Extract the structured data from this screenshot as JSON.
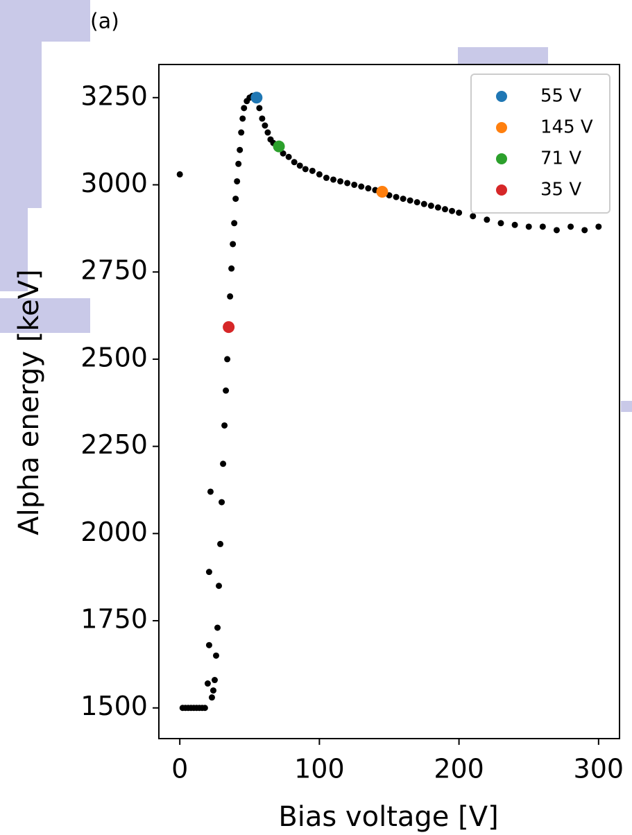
{
  "chart_data": {
    "type": "scatter",
    "panel_label": "(a)",
    "x_label": "Bias voltage [V]",
    "y_label": "Alpha energy [keV]",
    "xlim": [
      -15,
      315
    ],
    "ylim": [
      1412,
      3345
    ],
    "xticks": [
      0,
      100,
      200,
      300
    ],
    "yticks": [
      1500,
      1750,
      2000,
      2250,
      2500,
      2750,
      3000,
      3250
    ],
    "legend": "upper right",
    "points": {
      "color": "#000000",
      "x": [
        0,
        2,
        4,
        6,
        8,
        10,
        12,
        14,
        16,
        18,
        20,
        21,
        21,
        22,
        23,
        24,
        25,
        26,
        27,
        28,
        29,
        30,
        31,
        32,
        33,
        34,
        36,
        37,
        38,
        39,
        40,
        41,
        42,
        43,
        44,
        45,
        46,
        48,
        50,
        52,
        57,
        59,
        61,
        63,
        65,
        67,
        74,
        78,
        82,
        86,
        90,
        95,
        100,
        105,
        110,
        115,
        120,
        125,
        130,
        135,
        140,
        150,
        155,
        160,
        165,
        170,
        175,
        180,
        185,
        190,
        195,
        200,
        210,
        220,
        230,
        240,
        250,
        260,
        270,
        280,
        290,
        300
      ],
      "y": [
        3030,
        1500,
        1500,
        1500,
        1500,
        1500,
        1500,
        1500,
        1500,
        1500,
        1570,
        1680,
        1890,
        2120,
        1530,
        1550,
        1580,
        1650,
        1730,
        1850,
        1970,
        2090,
        2200,
        2310,
        2410,
        2500,
        2680,
        2760,
        2830,
        2890,
        2960,
        3010,
        3060,
        3100,
        3150,
        3190,
        3220,
        3240,
        3250,
        3255,
        3220,
        3190,
        3170,
        3150,
        3130,
        3120,
        3090,
        3080,
        3065,
        3055,
        3045,
        3040,
        3030,
        3020,
        3015,
        3010,
        3005,
        3000,
        2995,
        2990,
        2985,
        2970,
        2965,
        2960,
        2955,
        2950,
        2945,
        2940,
        2935,
        2930,
        2925,
        2920,
        2910,
        2900,
        2890,
        2885,
        2880,
        2880,
        2870,
        2880,
        2870,
        2880
      ]
    },
    "series": [
      {
        "name": "55 V",
        "color": "#1f77b4",
        "x": [
          55
        ],
        "y": [
          3250
        ]
      },
      {
        "name": "145 V",
        "color": "#ff7f0e",
        "x": [
          145
        ],
        "y": [
          2980
        ]
      },
      {
        "name": "71 V",
        "color": "#2ca02c",
        "x": [
          71
        ],
        "y": [
          3110
        ]
      },
      {
        "name": "35 V",
        "color": "#d62728",
        "x": [
          35
        ],
        "y": [
          2592
        ]
      }
    ]
  }
}
